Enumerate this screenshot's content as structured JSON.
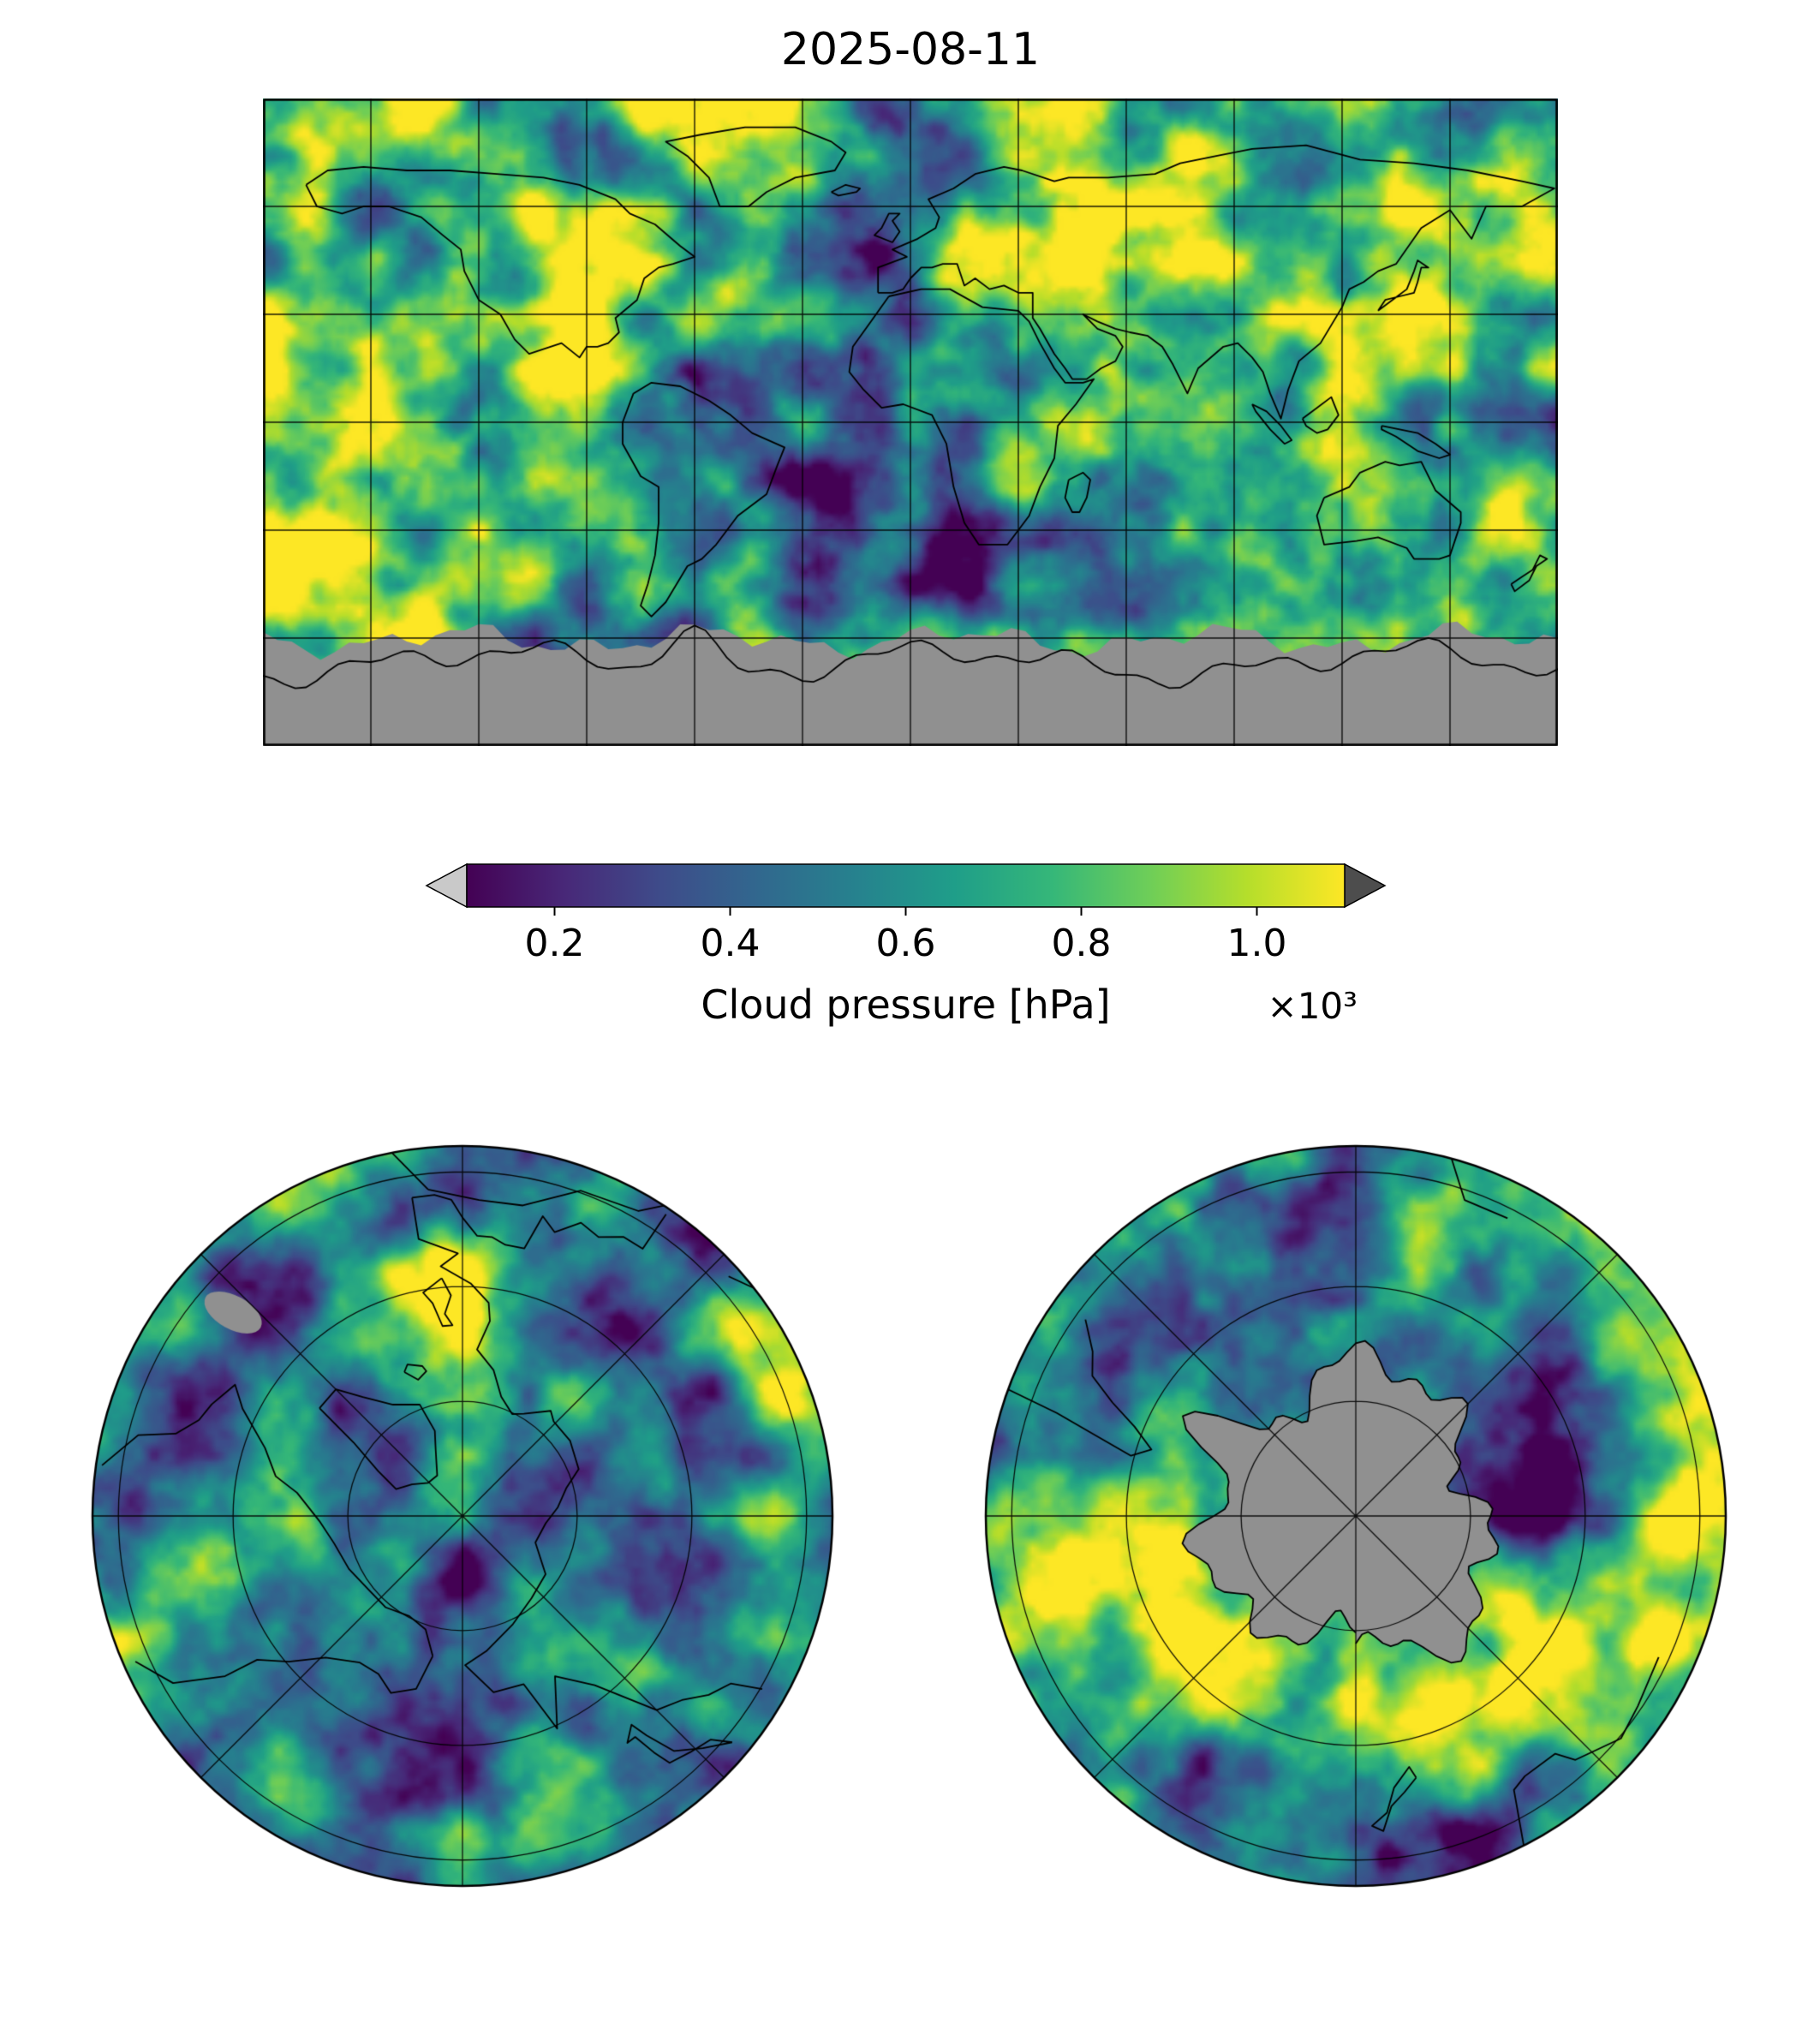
{
  "title": "2025-08-11",
  "colorbar": {
    "label": "Cloud pressure [hPa]",
    "multiplier": "×10³",
    "ticks": [
      "0.2",
      "0.4",
      "0.6",
      "0.8",
      "1.0"
    ],
    "colormap": "viridis",
    "viridis_stops": [
      "#440154",
      "#482878",
      "#3e4c8a",
      "#31688e",
      "#26828e",
      "#1f9e89",
      "#35b779",
      "#6ece58",
      "#b5de2b",
      "#fde725"
    ],
    "under_color": "#c9c9c9",
    "over_color": "#4d4d4d",
    "nodata_color": "#909090"
  },
  "chart_data": {
    "type": "heatmap",
    "title": "2025-08-11",
    "variable": "Cloud pressure",
    "colorbar_label": "Cloud pressure [hPa]",
    "units_multiplier": "×10³",
    "colormap": "viridis",
    "colorbar_tick_values": [
      0.2,
      0.4,
      0.6,
      0.8,
      1.0
    ],
    "colorbar_range": [
      0.1,
      1.1
    ],
    "colorbar_extend": "both",
    "legend_position": "horizontal colorbar below global map",
    "nodata_color": "gray",
    "panels": [
      {
        "name": "global-map",
        "projection": "equirectangular",
        "lon_grid_step_deg": 30,
        "lat_grid_step_deg": 30,
        "nodata": "Antarctica shown in gray"
      },
      {
        "name": "north-polar-map",
        "projection": "north polar stereographic",
        "grid": "45° meridians, latitude circles"
      },
      {
        "name": "south-polar-map",
        "projection": "south polar stereographic",
        "grid": "45° meridians, latitude circles",
        "nodata": "Antarctic continent shown in gray"
      }
    ]
  }
}
